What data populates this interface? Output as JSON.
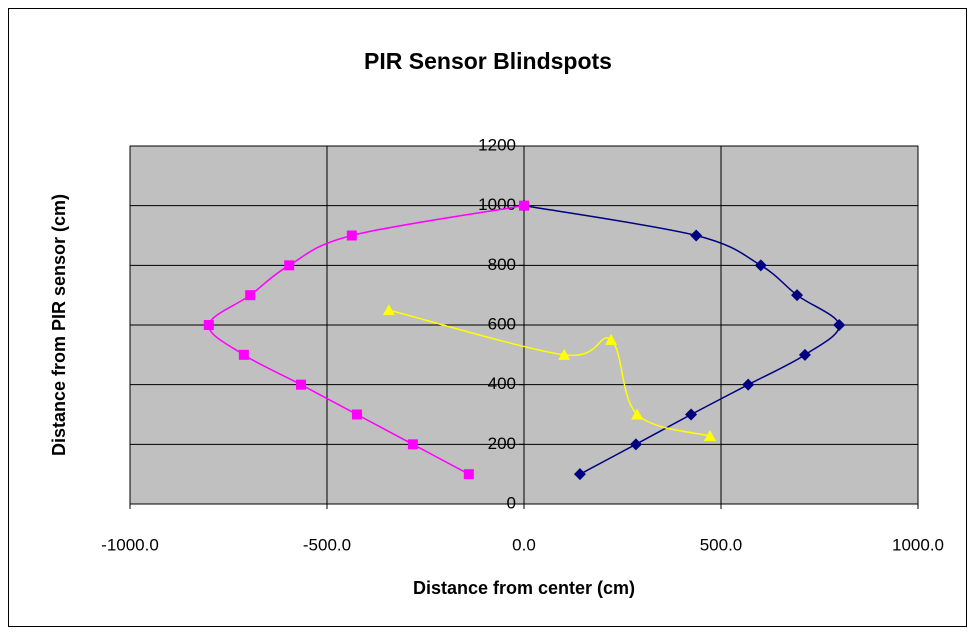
{
  "chart_data": {
    "type": "scatter",
    "title": "PIR Sensor Blindspots",
    "x_label": "Distance from center (cm)",
    "y_label": "Distance from PIR sensor (cm)",
    "xlim": [
      -1000,
      1000
    ],
    "ylim": [
      0,
      1200
    ],
    "xticks": [
      {
        "value": -1000,
        "label": "-1000.0"
      },
      {
        "value": -500,
        "label": "-500.0"
      },
      {
        "value": 0,
        "label": "0.0"
      },
      {
        "value": 500,
        "label": "500.0"
      },
      {
        "value": 1000,
        "label": "1000.0"
      }
    ],
    "yticks": [
      0,
      200,
      400,
      600,
      800,
      1000,
      1200
    ],
    "grid": true,
    "smooth": true,
    "series": [
      {
        "color": "#000080",
        "marker": "diamond",
        "x": [
          142,
          284,
          424,
          569,
          713,
          800,
          693,
          601,
          437,
          0
        ],
        "values": [
          100,
          200,
          300,
          400,
          500,
          600,
          700,
          800,
          900,
          1000
        ]
      },
      {
        "color": "#ff00ff",
        "marker": "square",
        "x": [
          -140,
          -282,
          -424,
          -566,
          -711,
          -800,
          -695,
          -596,
          -437,
          0
        ],
        "values": [
          100,
          200,
          300,
          400,
          500,
          600,
          700,
          800,
          900,
          1000
        ]
      },
      {
        "color": "#ffff00",
        "marker": "triangle",
        "x": [
          -343,
          102,
          221,
          287,
          472
        ],
        "values": [
          650,
          500,
          550,
          300,
          228
        ]
      }
    ]
  }
}
